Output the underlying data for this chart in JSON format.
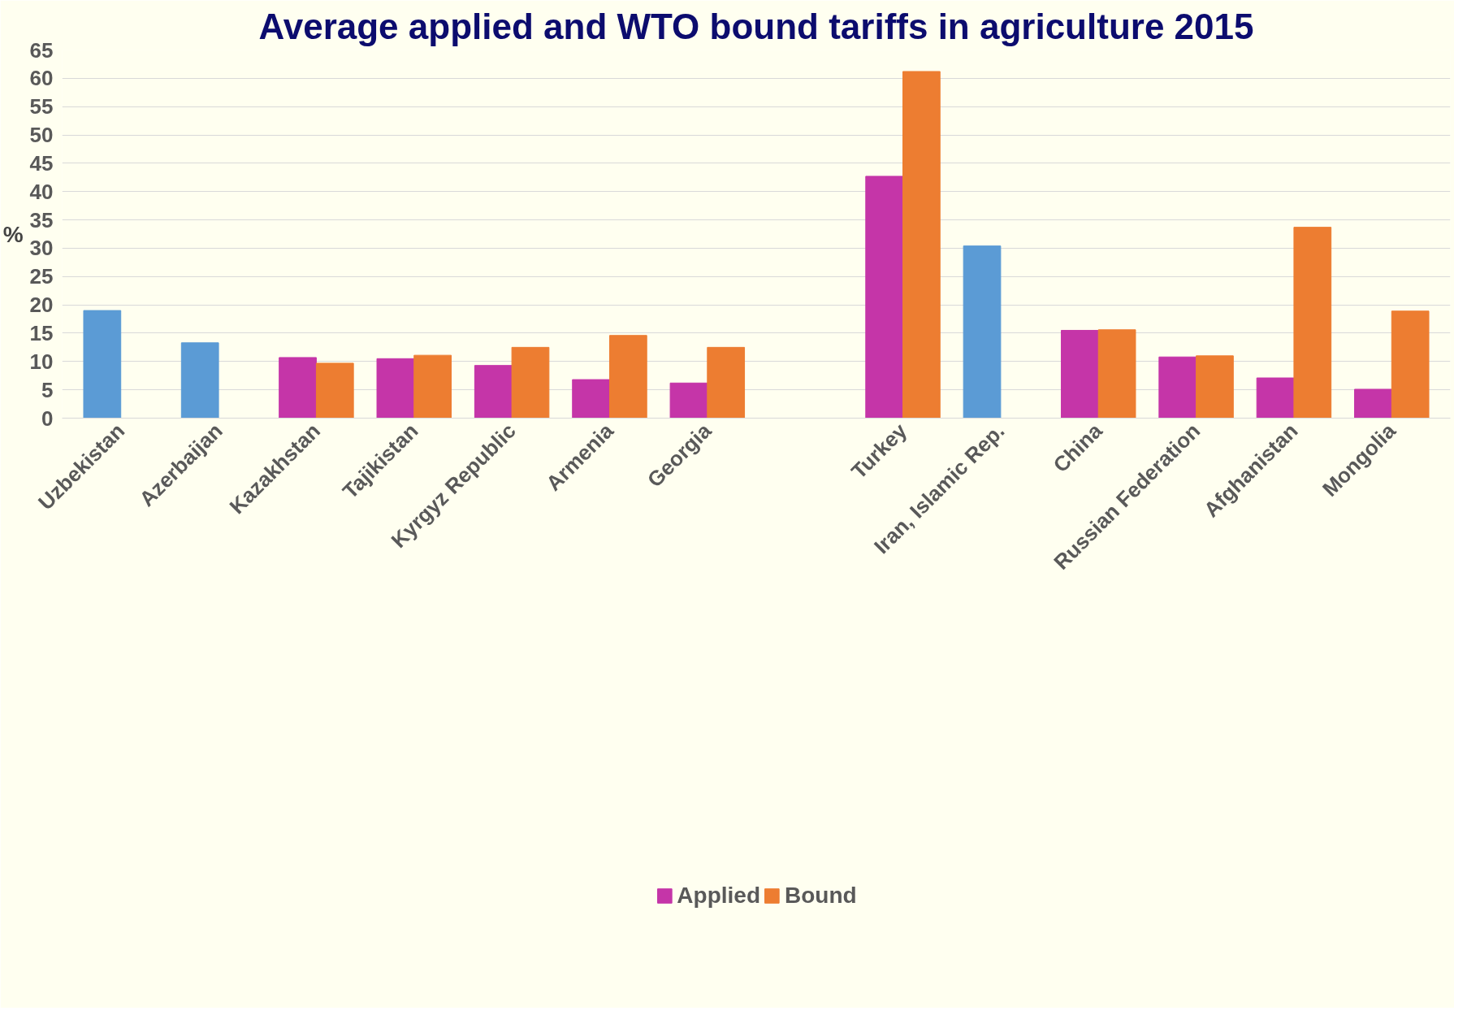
{
  "chart_data": {
    "type": "bar",
    "title": "Average applied and WTO bound tariffs in agriculture 2015",
    "ylabel": "%",
    "categories": [
      "Uzbekistan",
      "Azerbaijan",
      "Kazakhstan",
      "Tajikistan",
      "Kyrgyz Republic",
      "Armenia",
      "Georgia",
      null,
      "Turkey",
      "Iran, Islamic Rep.",
      "China",
      "Russian Federation",
      "Afghanistan",
      "Mongolia"
    ],
    "series": [
      {
        "name": "Applied",
        "color": "#c535a8",
        "colors": [
          "#5b9bd5",
          "#5b9bd5",
          "#c535a8",
          "#c535a8",
          "#c535a8",
          "#c535a8",
          "#c535a8",
          "#c535a8",
          "#c535a8",
          "#5b9bd5",
          "#c535a8",
          "#c535a8",
          "#c535a8",
          "#c535a8"
        ],
        "values": [
          19.0,
          13.3,
          10.7,
          10.5,
          9.3,
          6.8,
          6.2,
          null,
          42.7,
          30.4,
          15.5,
          10.8,
          7.1,
          5.1
        ]
      },
      {
        "name": "Bound",
        "color": "#ed7d31",
        "values": [
          null,
          null,
          9.7,
          11.1,
          12.5,
          14.6,
          12.5,
          null,
          61.2,
          null,
          15.6,
          11.0,
          33.7,
          18.9
        ]
      }
    ],
    "ylim": [
      0,
      65
    ],
    "yticks": [
      0,
      5,
      10,
      15,
      20,
      25,
      30,
      35,
      40,
      45,
      50,
      55,
      60,
      65
    ],
    "grid": "y",
    "legend": "bottom"
  }
}
